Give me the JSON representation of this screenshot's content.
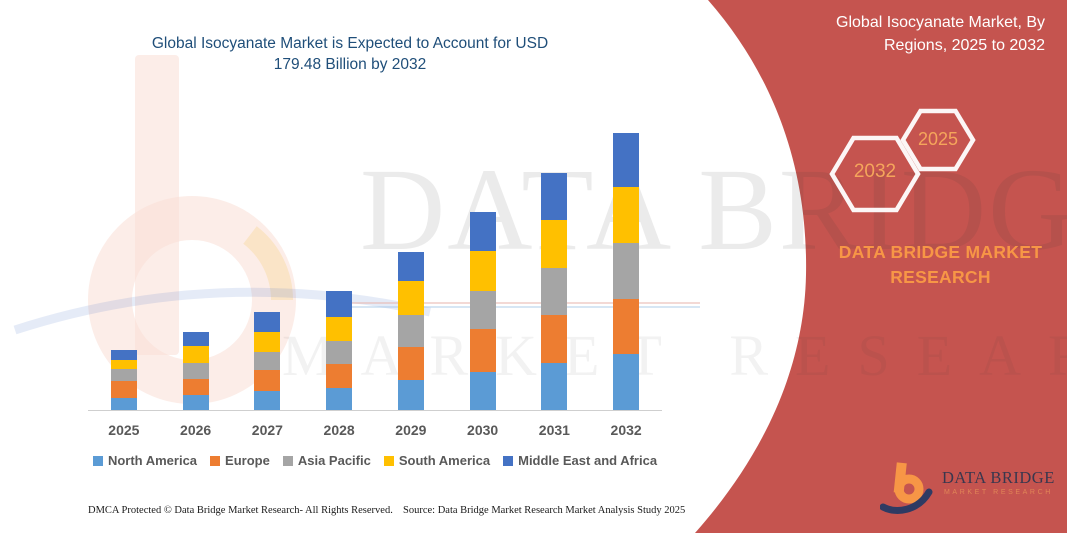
{
  "main_chart": {
    "title": "Global Isocyanate Market is Expected to Account for USD 179.48 Billion by 2032"
  },
  "chart_data": {
    "type": "bar",
    "stacked": true,
    "unit": "USD Billion",
    "title": "Global Isocyanate Market is Expected to Account for USD 179.48 Billion by 2032",
    "categories": [
      "2025",
      "2026",
      "2027",
      "2028",
      "2029",
      "2030",
      "2031",
      "2032"
    ],
    "series": [
      {
        "name": "North America",
        "color": "#5B9BD5",
        "values": [
          8.0,
          9.7,
          12.3,
          14.1,
          19.3,
          24.7,
          30.7,
          36.1
        ]
      },
      {
        "name": "Europe",
        "color": "#ED7D31",
        "values": [
          10.8,
          10.6,
          13.6,
          15.6,
          21.6,
          27.7,
          30.9,
          36.1
        ]
      },
      {
        "name": "Asia Pacific",
        "color": "#A5A5A5",
        "values": [
          8.0,
          9.9,
          11.9,
          15.1,
          20.8,
          24.5,
          30.7,
          36.3
        ]
      },
      {
        "name": "South America",
        "color": "#FFC000",
        "values": [
          5.8,
          11.2,
          12.8,
          15.8,
          22.1,
          26.4,
          30.7,
          36.1
        ]
      },
      {
        "name": "Middle East and Africa",
        "color": "#4472C4",
        "values": [
          6.0,
          9.1,
          13.0,
          16.7,
          18.8,
          25.3,
          30.9,
          34.9
        ]
      }
    ],
    "totals_estimated": [
      38.6,
      50.5,
      63.6,
      77.3,
      102.6,
      128.6,
      153.9,
      179.48
    ],
    "y_axis_visible": false,
    "grid": false,
    "legend_position": "bottom",
    "xlabel": "",
    "ylabel": ""
  },
  "side_panel": {
    "title": "Global Isocyanate Market, By Regions, 2025 to 2032",
    "hexagon_back_label": "2032",
    "hexagon_front_label": "2025",
    "brand_name": "DATA BRIDGE MARKET RESEARCH",
    "panel_color": "#C5544F",
    "accent_color": "#F79646"
  },
  "logo": {
    "name": "DATA BRIDGE",
    "subtitle": "MARKET RESEARCH"
  },
  "watermark": {
    "line1": "DATA BRIDGE",
    "line2": "MARKET RESEARCH"
  },
  "footer": {
    "left": "DMCA Protected © Data Bridge Market Research-  All Rights Reserved.",
    "source": "Source: Data Bridge Market Research  Market Analysis Study 2025"
  }
}
